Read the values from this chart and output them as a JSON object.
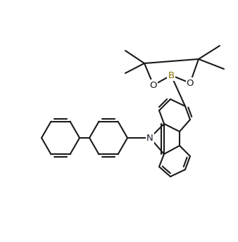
{
  "background_color": "#ffffff",
  "line_color": "#1a1a1a",
  "line_width": 1.5,
  "figsize": [
    3.38,
    3.44
  ],
  "dpi": 100,
  "N_label": "N",
  "B_label": "B",
  "O_label": "O",
  "label_fontsize": 9.5,
  "N_color": "#1a1a2a",
  "B_color": "#8B7000",
  "O_color": "#1a1a1a"
}
